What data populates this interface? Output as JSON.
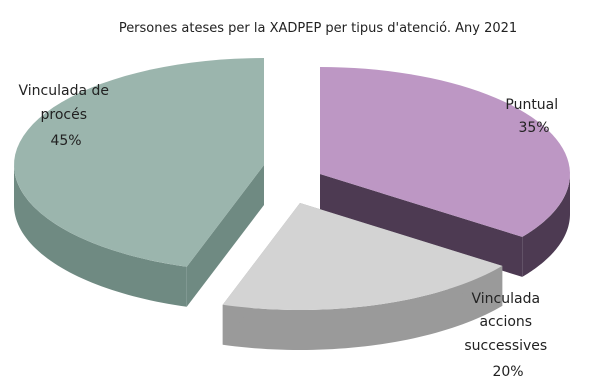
{
  "chart_data": {
    "type": "pie",
    "title": "Persones ateses per la XADPEP per tipus d'atenció. Any 2021",
    "exploded": true,
    "three_d": true,
    "slices": [
      {
        "label_lines": [
          "Puntual"
        ],
        "percent_label": "35%",
        "value": 35,
        "color": "#bd97c4",
        "side_color": "#4d3a52"
      },
      {
        "label_lines": [
          "Vinculada",
          "accions",
          "successives"
        ],
        "percent_label": "20%",
        "value": 20,
        "color": "#d3d3d3",
        "side_color": "#9a9a9a"
      },
      {
        "label_lines": [
          "Vinculada de",
          "procés"
        ],
        "percent_label": "45%",
        "value": 45,
        "color": "#9bb5ad",
        "side_color": "#6f8a82"
      }
    ]
  }
}
